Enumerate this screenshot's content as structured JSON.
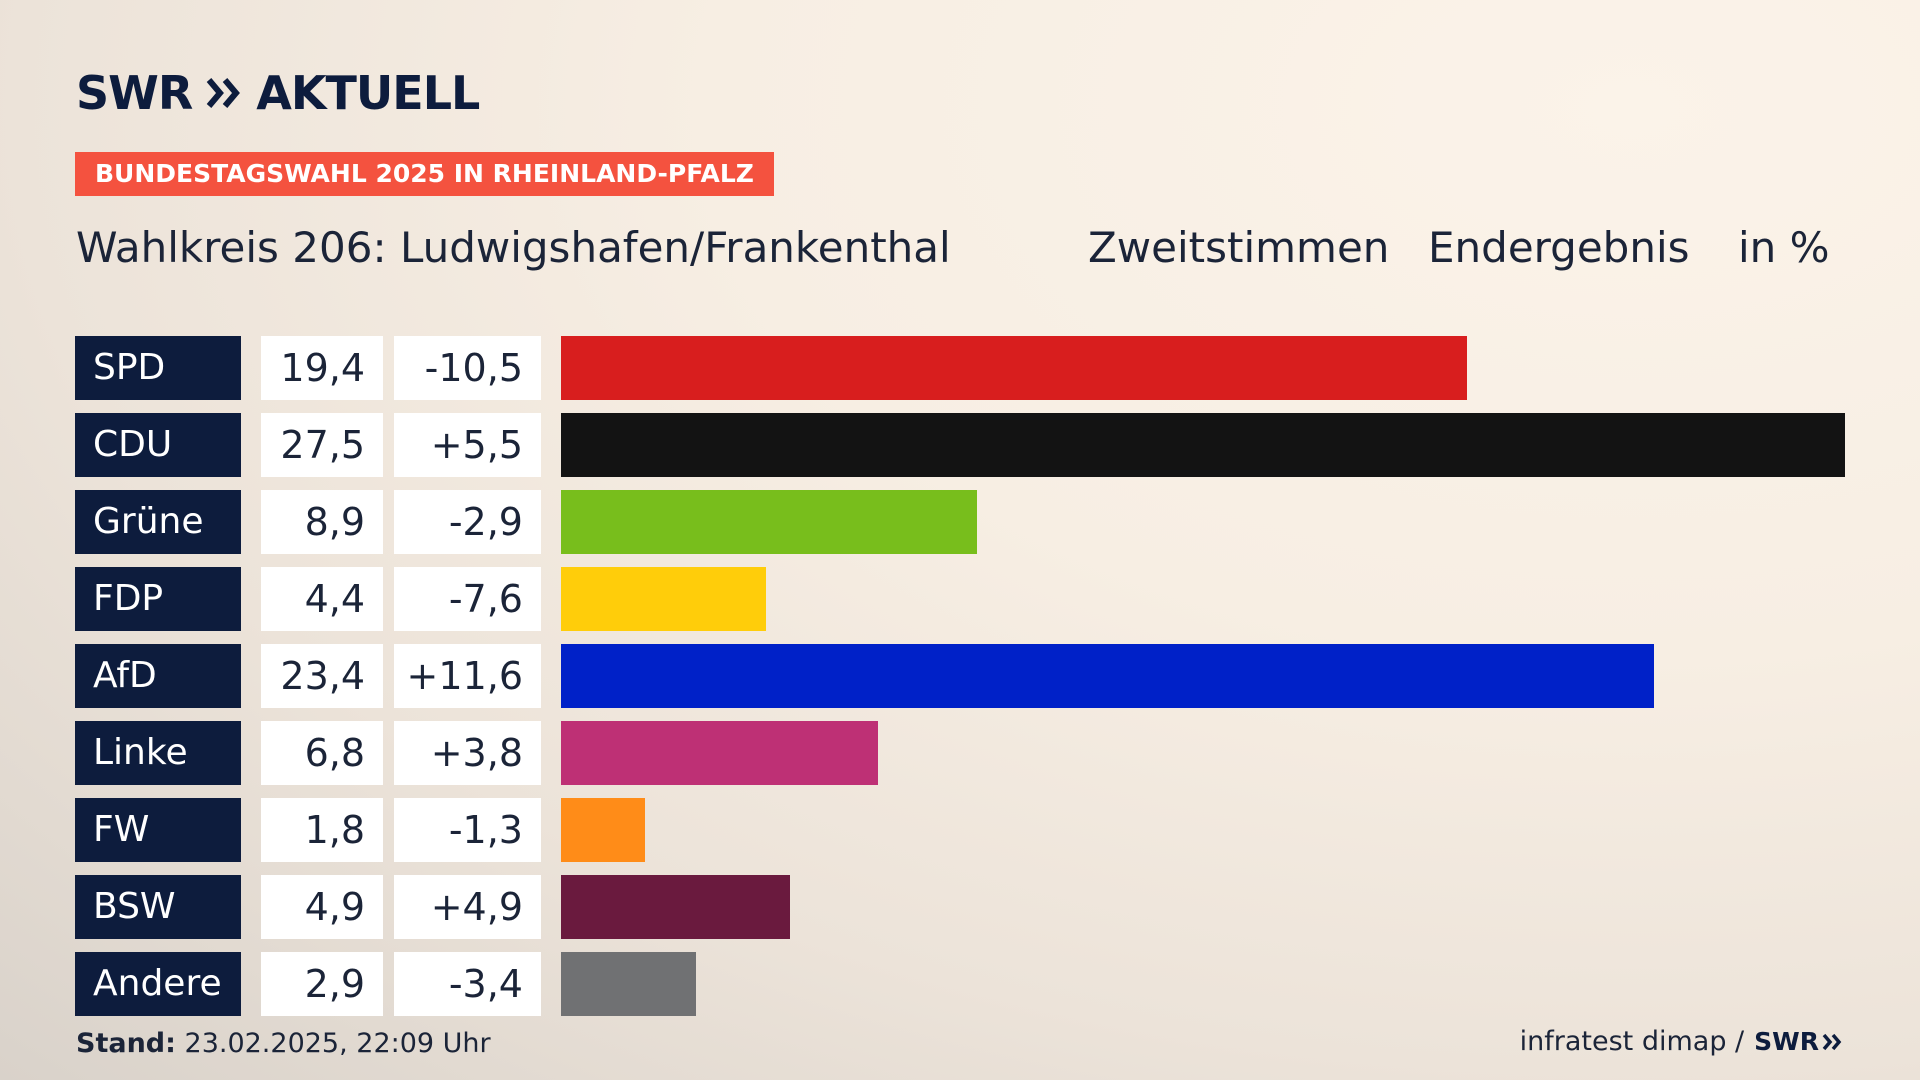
{
  "brand": {
    "logo_text": "SWR",
    "logo_suffix": "AKTUELL"
  },
  "topic": "BUNDESTAGSWAHL 2025 IN RHEINLAND-PFALZ",
  "header": {
    "title": "Wahlkreis 206: Ludwigshafen/Frankenthal",
    "votes_label": "Zweitstimmen",
    "result_label": "Endergebnis",
    "unit_label": "in %"
  },
  "chart_data": {
    "type": "bar",
    "orientation": "horizontal",
    "categories": [
      "SPD",
      "CDU",
      "Grüne",
      "FDP",
      "AfD",
      "Linke",
      "FW",
      "BSW",
      "Andere"
    ],
    "values": [
      19.4,
      27.5,
      8.9,
      4.4,
      23.4,
      6.8,
      1.8,
      4.9,
      2.9
    ],
    "value_labels": [
      "19,4",
      "27,5",
      "8,9",
      "4,4",
      "23,4",
      "6,8",
      "1,8",
      "4,9",
      "2,9"
    ],
    "change_labels": [
      "-10,5",
      "+5,5",
      "-2,9",
      "-7,6",
      "+11,6",
      "+3,8",
      "-1,3",
      "+4,9",
      "-3,4"
    ],
    "changes": [
      -10.5,
      5.5,
      -2.9,
      -7.6,
      11.6,
      3.8,
      -1.3,
      4.9,
      -3.4
    ],
    "colors": [
      "#d81e1e",
      "#131313",
      "#78be1c",
      "#ffcd0a",
      "#0021c8",
      "#be3075",
      "#ff8c18",
      "#6a1a3e",
      "#707173"
    ],
    "xlim": [
      0,
      27.5
    ],
    "grid": false,
    "legend": "none"
  },
  "footer": {
    "stand_label": "Stand:",
    "stand_value": "23.02.2025, 22:09 Uhr",
    "source": "infratest dimap /",
    "source_logo": "SWR"
  }
}
